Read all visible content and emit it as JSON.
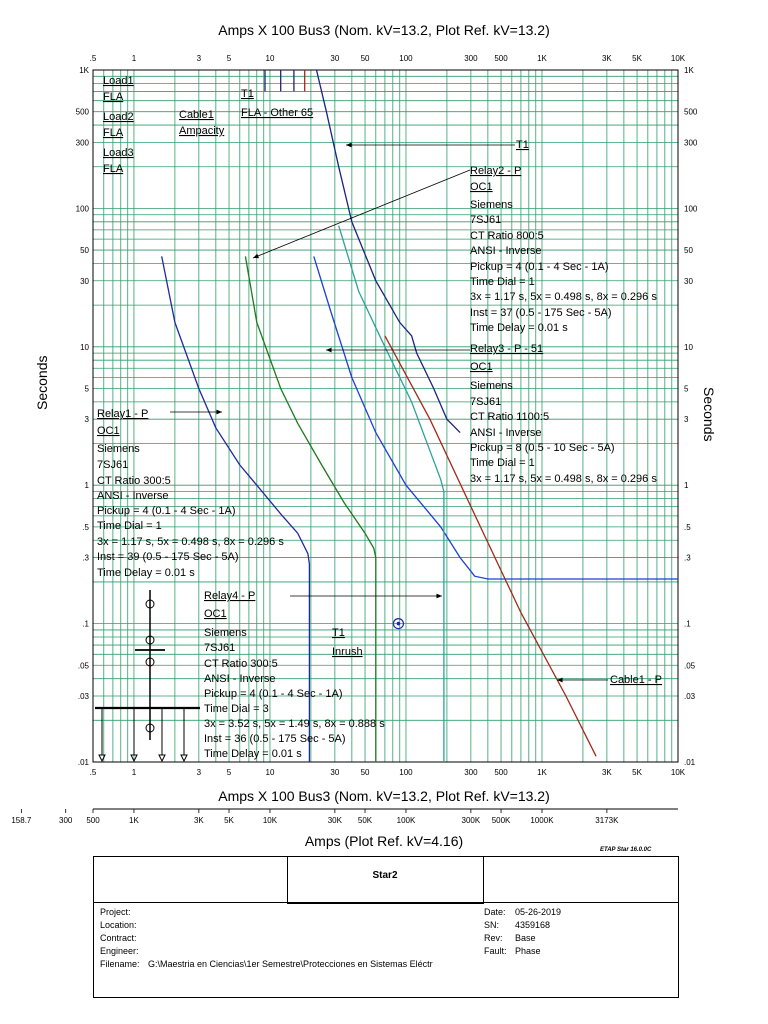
{
  "titles": {
    "top": "Amps  X  100   Bus3 (Nom. kV=13.2, Plot Ref. kV=13.2)",
    "bottom": "Amps  X  100   Bus3 (Nom. kV=13.2, Plot Ref. kV=13.2)",
    "bottom_amps": "Amps (Plot Ref. kV=4.16)",
    "y_left": "Seconds",
    "y_right": "Seconds",
    "etap_version": "ETAP Star 16.0.0C"
  },
  "chart_data": {
    "type": "line",
    "x_scale": "log",
    "y_scale": "log",
    "xlim": [
      0.5,
      10000
    ],
    "ylim": [
      0.01,
      1000
    ],
    "grid": true,
    "x_ticks": [
      "0.5",
      "1",
      "3",
      "5",
      "10",
      "30",
      "50",
      "100",
      "300",
      "500",
      "1K",
      "3K",
      "5K",
      "10K"
    ],
    "x_tick_values": [
      0.5,
      1,
      3,
      5,
      10,
      30,
      50,
      100,
      300,
      500,
      1000,
      3000,
      5000,
      10000
    ],
    "x_tick_texts": [
      ".5",
      "1",
      "3",
      "5",
      "10",
      "30",
      "50",
      "100",
      "300",
      "500",
      "1K",
      "3K",
      "5K",
      "10K"
    ],
    "y_tick_values": [
      1000,
      500,
      300,
      100,
      50,
      30,
      10,
      5,
      3,
      1,
      0.5,
      0.3,
      0.1,
      0.05,
      0.03,
      0.01
    ],
    "y_tick_texts": [
      "1K",
      "500",
      "300",
      "100",
      "50",
      "30",
      "10",
      "5",
      "3",
      "1",
      ".5",
      ".3",
      ".1",
      ".05",
      ".03",
      ".01"
    ],
    "x2_tick_values": [
      0.1487,
      0.315,
      0.5,
      1,
      3,
      5,
      10,
      30,
      50,
      100,
      300,
      500,
      1000,
      3000
    ],
    "x2_tick_texts": [
      "158.7",
      "300",
      "500",
      "1K",
      "3K",
      "5K",
      "10K",
      "30K",
      "50K",
      "100K",
      "300K",
      "500K",
      "1000K",
      "3173K"
    ],
    "series": [
      {
        "name": "Relay1 - P",
        "color": "#1f2aa0",
        "points": [
          [
            1.6,
            45
          ],
          [
            2,
            15
          ],
          [
            3,
            5
          ],
          [
            4,
            2.6
          ],
          [
            6,
            1.4
          ],
          [
            8,
            1.0
          ],
          [
            12,
            0.62
          ],
          [
            16,
            0.45
          ],
          [
            19,
            0.32
          ],
          [
            19.5,
            0.27
          ],
          [
            19.5,
            0.01
          ]
        ]
      },
      {
        "name": "Relay4 - P",
        "color": "#1e7a1e",
        "points": [
          [
            6.6,
            45
          ],
          [
            8,
            15
          ],
          [
            12,
            5
          ],
          [
            16,
            2.8
          ],
          [
            24,
            1.4
          ],
          [
            35,
            0.75
          ],
          [
            50,
            0.45
          ],
          [
            58,
            0.35
          ],
          [
            60,
            0.3
          ],
          [
            60,
            0.01
          ]
        ]
      },
      {
        "name": "Relay2 - P",
        "color": "#1f3fd6",
        "points": [
          [
            21,
            45
          ],
          [
            28,
            18
          ],
          [
            40,
            6
          ],
          [
            60,
            2.4
          ],
          [
            100,
            1.0
          ],
          [
            180,
            0.5
          ],
          [
            250,
            0.3
          ],
          [
            320,
            0.22
          ],
          [
            400,
            0.21
          ],
          [
            10000,
            0.21
          ]
        ]
      },
      {
        "name": "Relay3 - P - 51",
        "color": "#2aa39a",
        "points": [
          [
            32,
            75
          ],
          [
            45,
            25
          ],
          [
            70,
            10
          ],
          [
            110,
            4
          ],
          [
            160,
            1.5
          ],
          [
            180,
            1.1
          ],
          [
            190,
            0.9
          ],
          [
            190,
            0.01
          ]
        ]
      },
      {
        "name": "T1",
        "color": "#1a237e",
        "points": [
          [
            22,
            1000
          ],
          [
            26,
            500
          ],
          [
            32,
            200
          ],
          [
            40,
            80
          ],
          [
            60,
            30
          ],
          [
            90,
            15
          ],
          [
            110,
            12
          ],
          [
            120,
            9
          ],
          [
            160,
            5
          ],
          [
            200,
            3
          ],
          [
            250,
            2.4
          ]
        ]
      },
      {
        "name": "Cable1 - P",
        "color": "#a3281a",
        "points": [
          [
            70,
            12
          ],
          [
            150,
            3
          ],
          [
            300,
            0.7
          ],
          [
            700,
            0.12
          ],
          [
            1500,
            0.03
          ],
          [
            2500,
            0.011
          ]
        ]
      },
      {
        "name": "Load1 FLA",
        "color": "#1a237e",
        "points": [
          [
            9.2,
            1000
          ],
          [
            9.2,
            700
          ]
        ]
      },
      {
        "name": "Load2 FLA",
        "color": "#1a237e",
        "points": [
          [
            12,
            1000
          ],
          [
            12,
            700
          ]
        ]
      },
      {
        "name": "T1 FLA - Other 65",
        "color": "#1a237e",
        "points": [
          [
            15,
            1000
          ],
          [
            15,
            700
          ]
        ]
      },
      {
        "name": "Cable1 Ampacity",
        "color": "#a3281a",
        "points": [
          [
            18,
            1000
          ],
          [
            18,
            700
          ]
        ]
      }
    ],
    "labels": [
      {
        "text": "Load1",
        "underline": true
      },
      {
        "text": "FLA",
        "underline": true
      },
      {
        "text": "Load2",
        "underline": true
      },
      {
        "text": "FLA",
        "underline": true
      },
      {
        "text": "Load3",
        "underline": true
      },
      {
        "text": "FLA",
        "underline": true
      },
      {
        "text": "Cable1",
        "underline": true
      },
      {
        "text": "Ampacity",
        "underline": true
      },
      {
        "text": "T1",
        "underline": true
      },
      {
        "text": "FLA - Other 65",
        "underline": true
      },
      {
        "text": "T1",
        "underline": true
      },
      {
        "text": "Relay2 - P",
        "underline": true
      },
      {
        "text": "OC1",
        "underline": true
      },
      {
        "text": "Siemens"
      },
      {
        "text": "7SJ61"
      },
      {
        "text": "CT Ratio 800:5"
      },
      {
        "text": "ANSI - Inverse"
      },
      {
        "text": "Pickup = 4 (0.1 - 4  Sec - 1A)"
      },
      {
        "text": "Time Dial = 1"
      },
      {
        "text": "3x = 1.17 s, 5x = 0.498 s, 8x = 0.296 s"
      },
      {
        "text": "Inst = 37 (0.5 - 175  Sec - 5A)"
      },
      {
        "text": "Time Delay = 0.01 s"
      },
      {
        "text": "Relay3 - P - 51",
        "underline": true
      },
      {
        "text": "OC1",
        "underline": true
      },
      {
        "text": "Siemens"
      },
      {
        "text": "7SJ61"
      },
      {
        "text": "CT Ratio 1100:5"
      },
      {
        "text": "ANSI - Inverse"
      },
      {
        "text": "Pickup = 8 (0.5 - 10  Sec - 5A)"
      },
      {
        "text": "Time Dial = 1"
      },
      {
        "text": "3x = 1.17 s, 5x = 0.498 s, 8x = 0.296 s"
      },
      {
        "text": "Relay1 - P",
        "underline": true
      },
      {
        "text": "OC1",
        "underline": true
      },
      {
        "text": "Siemens"
      },
      {
        "text": "7SJ61"
      },
      {
        "text": "CT Ratio 300:5"
      },
      {
        "text": "ANSI - Inverse"
      },
      {
        "text": "Pickup = 4 (0.1 - 4  Sec - 1A)"
      },
      {
        "text": "Time Dial = 1"
      },
      {
        "text": "3x = 1.17 s, 5x = 0.498 s, 8x = 0.296 s"
      },
      {
        "text": "Inst = 39 (0.5 - 175  Sec - 5A)"
      },
      {
        "text": "Time Delay = 0.01 s"
      },
      {
        "text": "Relay4 - P",
        "underline": true
      },
      {
        "text": "OC1",
        "underline": true
      },
      {
        "text": "Siemens"
      },
      {
        "text": "7SJ61"
      },
      {
        "text": "CT Ratio 300:5"
      },
      {
        "text": "ANSI - Inverse"
      },
      {
        "text": "Pickup = 4 (0.1 - 4  Sec - 1A)"
      },
      {
        "text": "Time Dial = 3"
      },
      {
        "text": "3x = 3.52 s, 5x = 1.49 s, 8x = 0.888 s"
      },
      {
        "text": "Inst = 36 (0.5 - 175  Sec - 5A)"
      },
      {
        "text": "Time Delay = 0.01 s"
      },
      {
        "text": "T1",
        "underline": true
      },
      {
        "text": "Inrush",
        "underline": true
      },
      {
        "text": "Cable1 - P",
        "underline": true
      }
    ]
  },
  "title_block": {
    "name": "Star2",
    "project_label": "Project:",
    "location_label": "Location:",
    "contract_label": "Contract:",
    "engineer_label": "Engineer:",
    "filename_label": "Filename:",
    "filename_value": "G:\\Maestria en Ciencias\\1er Semestre\\Protecciones en Sistemas Eléctr",
    "date_label": "Date:",
    "date_value": "05-26-2019",
    "sn_label": "SN:",
    "sn_value": "4359168",
    "rev_label": "Rev:",
    "rev_value": "Base",
    "fault_label": "Fault:",
    "fault_value": "Phase"
  }
}
